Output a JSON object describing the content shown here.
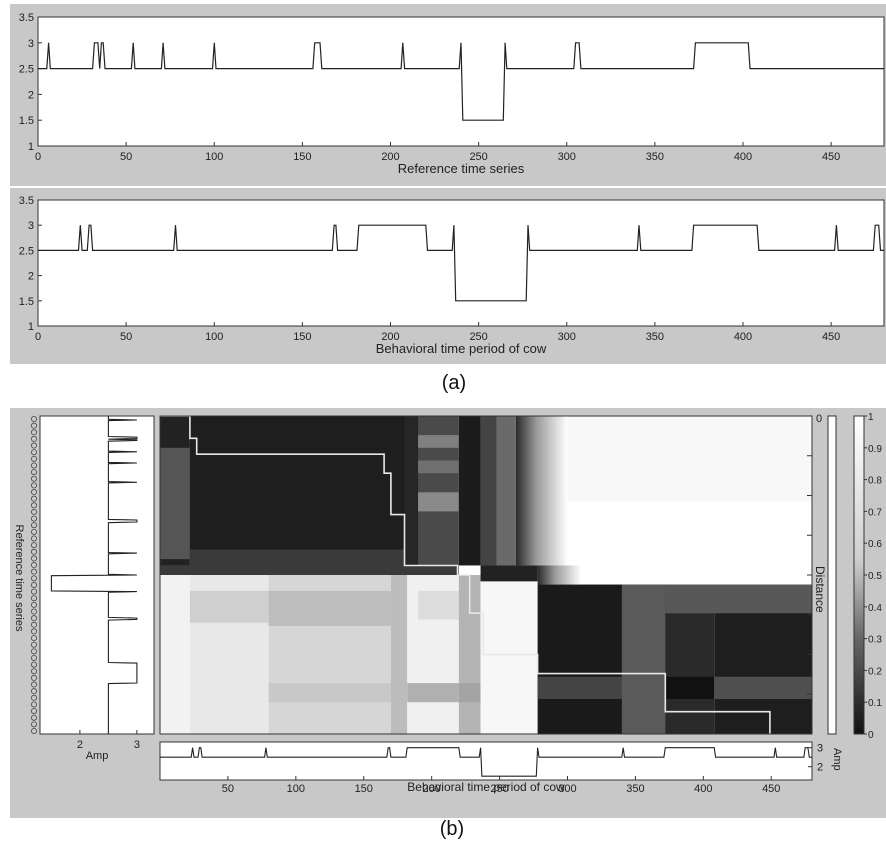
{
  "captions": {
    "a": "(a)",
    "b": "(b)"
  },
  "chart_data": [
    {
      "type": "line",
      "panel": "a-top",
      "xlabel": "Reference time series",
      "xlim": [
        0,
        480
      ],
      "ylim": [
        1,
        3.5
      ],
      "xticks": [
        0,
        50,
        100,
        150,
        200,
        250,
        300,
        350,
        400,
        450
      ],
      "yticks": [
        1,
        1.5,
        2,
        2.5,
        3,
        3.5
      ],
      "grid": false,
      "series": [
        {
          "values": [
            [
              0,
              2.5
            ],
            [
              5,
              2.5
            ],
            [
              6,
              3
            ],
            [
              7,
              2.5
            ],
            [
              31,
              2.5
            ],
            [
              32,
              3
            ],
            [
              34,
              3
            ],
            [
              35,
              2.5
            ],
            [
              36,
              3
            ],
            [
              37,
              3
            ],
            [
              38,
              2.5
            ],
            [
              53,
              2.5
            ],
            [
              54,
              3
            ],
            [
              55,
              2.5
            ],
            [
              70,
              2.5
            ],
            [
              71,
              3
            ],
            [
              72,
              2.5
            ],
            [
              99,
              2.5
            ],
            [
              100,
              3
            ],
            [
              101,
              2.5
            ],
            [
              156,
              2.5
            ],
            [
              157,
              3
            ],
            [
              160,
              3
            ],
            [
              161,
              2.5
            ],
            [
              206,
              2.5
            ],
            [
              207,
              3
            ],
            [
              208,
              2.5
            ],
            [
              239,
              2.5
            ],
            [
              240,
              3
            ],
            [
              241,
              1.5
            ],
            [
              264,
              1.5
            ],
            [
              265,
              3
            ],
            [
              266,
              2.5
            ],
            [
              304,
              2.5
            ],
            [
              305,
              3
            ],
            [
              307,
              3
            ],
            [
              308,
              2.5
            ],
            [
              372,
              2.5
            ],
            [
              373,
              3
            ],
            [
              403,
              3
            ],
            [
              404,
              2.5
            ],
            [
              480,
              2.5
            ]
          ]
        }
      ]
    },
    {
      "type": "line",
      "panel": "a-bottom",
      "xlabel": "Behavioral time period of cow",
      "xlim": [
        0,
        480
      ],
      "ylim": [
        1,
        3.5
      ],
      "xticks": [
        0,
        50,
        100,
        150,
        200,
        250,
        300,
        350,
        400,
        450
      ],
      "yticks": [
        1,
        1.5,
        2,
        2.5,
        3,
        3.5
      ],
      "grid": false,
      "series": [
        {
          "values": [
            [
              0,
              2.5
            ],
            [
              23,
              2.5
            ],
            [
              24,
              3
            ],
            [
              25,
              2.5
            ],
            [
              28,
              2.5
            ],
            [
              29,
              3
            ],
            [
              30,
              3
            ],
            [
              31,
              2.5
            ],
            [
              77,
              2.5
            ],
            [
              78,
              3
            ],
            [
              79,
              2.5
            ],
            [
              167,
              2.5
            ],
            [
              168,
              3
            ],
            [
              169,
              3
            ],
            [
              170,
              2.5
            ],
            [
              181,
              2.5
            ],
            [
              182,
              3
            ],
            [
              220,
              3
            ],
            [
              221,
              2.5
            ],
            [
              235,
              2.5
            ],
            [
              236,
              3
            ],
            [
              237,
              1.5
            ],
            [
              277,
              1.5
            ],
            [
              278,
              3
            ],
            [
              279,
              2.5
            ],
            [
              340,
              2.5
            ],
            [
              341,
              3
            ],
            [
              342,
              2.5
            ],
            [
              371,
              2.5
            ],
            [
              372,
              3
            ],
            [
              408,
              3
            ],
            [
              409,
              2.5
            ],
            [
              452,
              2.5
            ],
            [
              453,
              3
            ],
            [
              454,
              2.5
            ],
            [
              474,
              2.5
            ],
            [
              475,
              3
            ],
            [
              477,
              3
            ],
            [
              478,
              2.5
            ],
            [
              480,
              2.5
            ]
          ]
        }
      ]
    },
    {
      "type": "heatmap",
      "panel": "b",
      "xlabel": "Behavioral time period of cow",
      "left_ylabel": "Reference time series",
      "left_xlabel": "Amp",
      "left_xticks": [
        2,
        3
      ],
      "bottom_ylabel": "Amp",
      "bottom_yticks": [
        2,
        3
      ],
      "right_label": "Distance",
      "right_tick": "0",
      "xlim": [
        0,
        480
      ],
      "xticks": [
        50,
        100,
        150,
        200,
        250,
        300,
        350,
        400,
        450
      ],
      "colorbar": {
        "ticks": [
          "1",
          "0.9",
          "0.8",
          "0.7",
          "0.6",
          "0.5",
          "0.4",
          "0.3",
          "0.2",
          "0.1",
          "0"
        ]
      },
      "dtw_path": [
        [
          0,
          0
        ],
        [
          22,
          0
        ],
        [
          22,
          0.07
        ],
        [
          27,
          0.07
        ],
        [
          27,
          0.12
        ],
        [
          165,
          0.12
        ],
        [
          165,
          0.18
        ],
        [
          170,
          0.18
        ],
        [
          170,
          0.31
        ],
        [
          180,
          0.31
        ],
        [
          180,
          0.47
        ],
        [
          219,
          0.47
        ],
        [
          219,
          0.5
        ],
        [
          228,
          0.5
        ],
        [
          228,
          0.62
        ],
        [
          238,
          0.62
        ],
        [
          238,
          0.75
        ],
        [
          278,
          0.75
        ],
        [
          278,
          0.81
        ],
        [
          372,
          0.81
        ],
        [
          372,
          0.93
        ],
        [
          449,
          0.93
        ],
        [
          449,
          1.0
        ]
      ]
    }
  ]
}
